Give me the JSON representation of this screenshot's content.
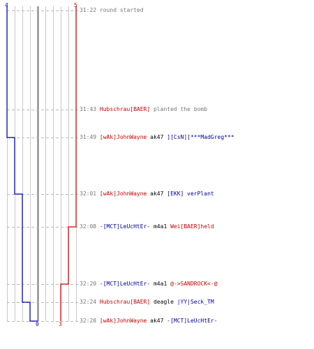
{
  "teams": {
    "blue": {
      "color": "#0000bb",
      "start_count": "4",
      "end_count": "0"
    },
    "red": {
      "color": "#dd0000",
      "start_count": "5",
      "end_count": "3"
    }
  },
  "events": [
    {
      "time": "31:22",
      "parts": [
        {
          "text": "round started",
          "style": "action"
        }
      ]
    },
    {
      "time": "31:43",
      "parts": [
        {
          "text": "Hubschrau[BAER]",
          "style": "red"
        },
        {
          "text": " planted the bomb",
          "style": "action"
        }
      ]
    },
    {
      "time": "31:49",
      "parts": [
        {
          "text": "[wAk]JohnWayne",
          "style": "red"
        },
        {
          "text": " ak47 ",
          "style": "weapon"
        },
        {
          "text": "][CsN][***MadGreg***",
          "style": "blue"
        }
      ]
    },
    {
      "time": "32:01",
      "parts": [
        {
          "text": "[wAk]JohnWayne",
          "style": "red"
        },
        {
          "text": " ak47 ",
          "style": "weapon"
        },
        {
          "text": "[EKK] verPlant",
          "style": "blue"
        }
      ]
    },
    {
      "time": "32:08",
      "parts": [
        {
          "text": "-[MCT]LeUcHtEr-",
          "style": "blue"
        },
        {
          "text": " m4a1 ",
          "style": "weapon"
        },
        {
          "text": "Wei[BAER]held",
          "style": "red"
        }
      ]
    },
    {
      "time": "32:20",
      "parts": [
        {
          "text": "-[MCT]LeUcHtEr-",
          "style": "blue"
        },
        {
          "text": " m4a1 ",
          "style": "weapon"
        },
        {
          "text": "@->SANDROCK<-@",
          "style": "red"
        }
      ]
    },
    {
      "time": "32:24",
      "parts": [
        {
          "text": "Hubschrau[BAER]",
          "style": "red"
        },
        {
          "text": " deagle ",
          "style": "weapon"
        },
        {
          "text": "|YY|Seck_TM",
          "style": "blue"
        }
      ]
    },
    {
      "time": "32:28",
      "parts": [
        {
          "text": "[wAk]JohnWayne",
          "style": "red"
        },
        {
          "text": " ak47 ",
          "style": "weapon"
        },
        {
          "text": "-[MCT]LeUcHtEr-",
          "style": "blue"
        }
      ]
    }
  ]
}
